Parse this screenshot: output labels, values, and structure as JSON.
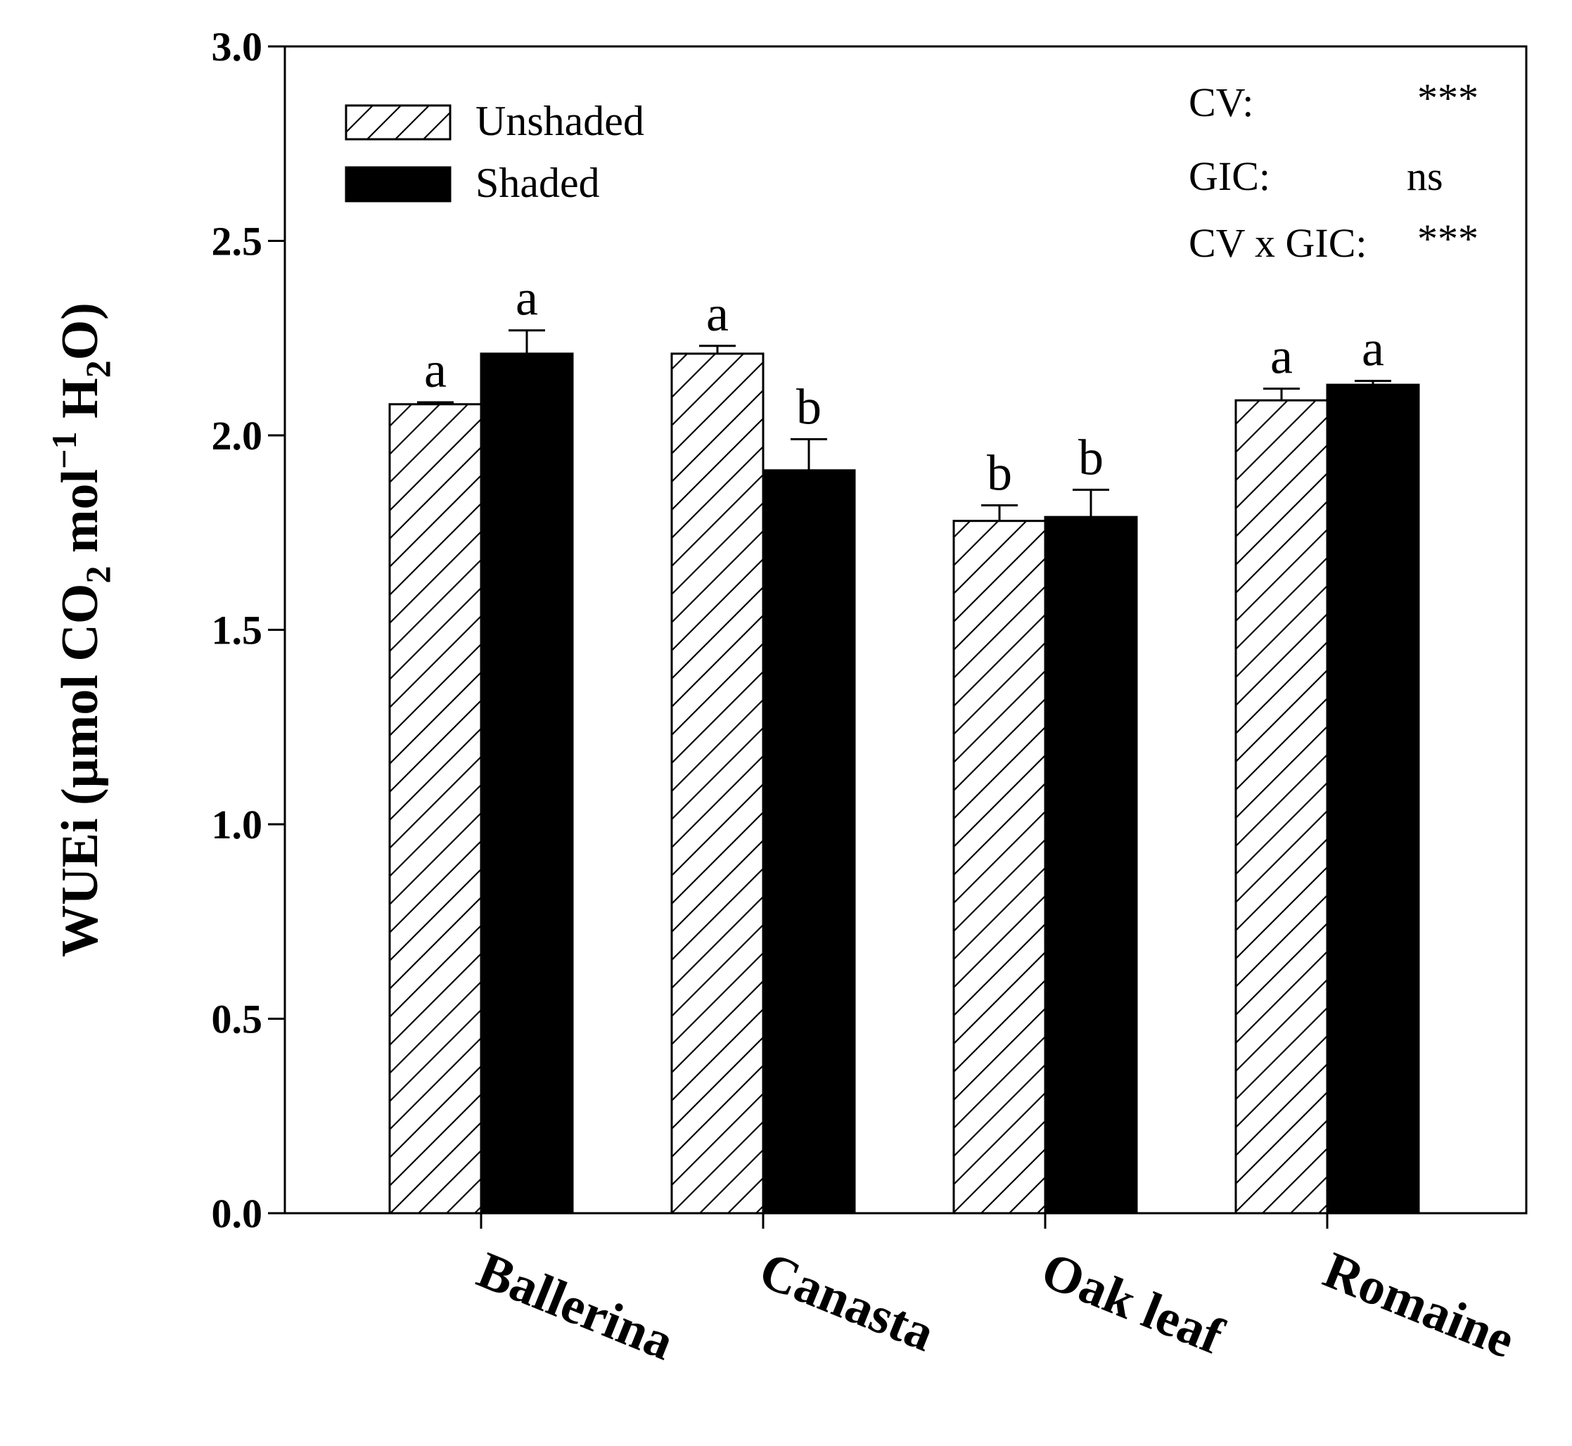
{
  "chart_data": {
    "type": "bar",
    "title": "",
    "xlabel": "",
    "ylabel": {
      "prefix": "WUEi (μmol CO",
      "sub1": "2",
      "mid": " mol",
      "sup": "−1",
      "mid2": " H",
      "sub2": "2",
      "suffix": "O)"
    },
    "ylim": [
      0,
      3.0
    ],
    "y_ticks": [
      "0.0",
      "0.5",
      "1.0",
      "1.5",
      "2.0",
      "2.5",
      "3.0"
    ],
    "categories": [
      "Ballerina",
      "Canasta",
      "Oak leaf",
      "Romaine"
    ],
    "series": [
      {
        "name": "Unshaded",
        "pattern": "hatched",
        "values": [
          2.08,
          2.21,
          1.78,
          2.09
        ],
        "errors": [
          0.005,
          0.02,
          0.04,
          0.03
        ],
        "letters": [
          "a",
          "a",
          "b",
          "a"
        ]
      },
      {
        "name": "Shaded",
        "pattern": "solid",
        "values": [
          2.21,
          1.91,
          1.79,
          2.13
        ],
        "errors": [
          0.06,
          0.08,
          0.07,
          0.01
        ],
        "letters": [
          "a",
          "b",
          "b",
          "a"
        ]
      }
    ],
    "legend_placement": "top-left",
    "stats": [
      {
        "label": "CV:",
        "value": "***"
      },
      {
        "label": "GIC:",
        "value": "ns"
      },
      {
        "label": "CV x GIC:",
        "value": "***"
      }
    ],
    "colors": {
      "shaded": "#000000",
      "unshaded": "#ffffff",
      "axis": "#000000"
    }
  }
}
